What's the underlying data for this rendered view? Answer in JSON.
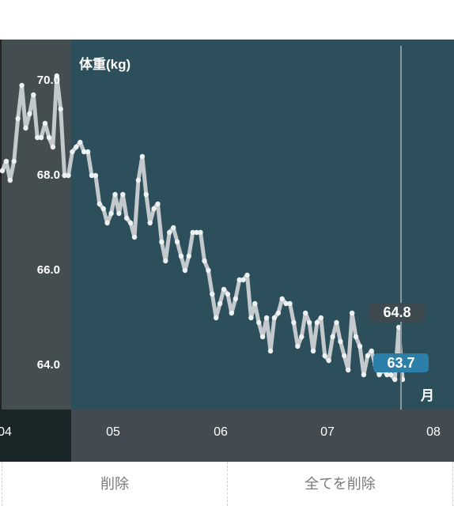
{
  "chart_data": {
    "type": "line",
    "title": "体重(kg)",
    "yticks": [
      "64.0",
      "66.0",
      "68.0",
      "70.0"
    ],
    "ylim": [
      63.1,
      70.8
    ],
    "xticks": [
      "04",
      "05",
      "06",
      "07",
      "08"
    ],
    "x_unit": "月",
    "callouts": {
      "max_label": "64.8",
      "current_label": "63.7"
    },
    "series": [
      {
        "values": [
          68.1,
          68.3,
          67.9,
          68.3,
          69.2,
          69.9,
          69.0,
          69.3,
          69.7,
          68.8,
          68.8,
          69.1,
          68.8,
          68.6,
          70.1,
          69.4,
          68.0,
          68.0,
          68.5,
          68.6,
          68.7,
          68.5,
          68.5,
          68.0,
          68.0,
          67.4,
          67.3,
          67.0,
          67.2,
          67.6,
          67.2,
          67.6,
          67.1,
          67.0,
          66.7,
          67.9,
          68.4,
          67.6,
          67.0,
          67.3,
          67.4,
          66.6,
          66.2,
          66.8,
          66.9,
          66.6,
          66.3,
          66.0,
          66.3,
          66.8,
          66.8,
          66.8,
          66.2,
          66.0,
          65.5,
          65.0,
          65.3,
          65.6,
          65.5,
          65.1,
          65.4,
          65.8,
          65.8,
          65.9,
          65.0,
          65.3,
          64.9,
          64.6,
          65.0,
          64.3,
          65.0,
          65.1,
          65.4,
          65.3,
          65.3,
          64.9,
          64.4,
          64.6,
          65.1,
          64.9,
          64.3,
          64.9,
          65.0,
          64.2,
          64.1,
          64.6,
          64.9,
          64.5,
          64.2,
          63.9,
          65.1,
          64.6,
          64.4,
          63.8,
          64.2,
          64.3,
          64.0,
          63.8,
          63.9,
          63.8,
          63.8,
          63.7,
          64.8,
          63.7
        ]
      }
    ]
  },
  "actions": {
    "delete_label": "削除",
    "delete_all_label": "全てを削除"
  }
}
